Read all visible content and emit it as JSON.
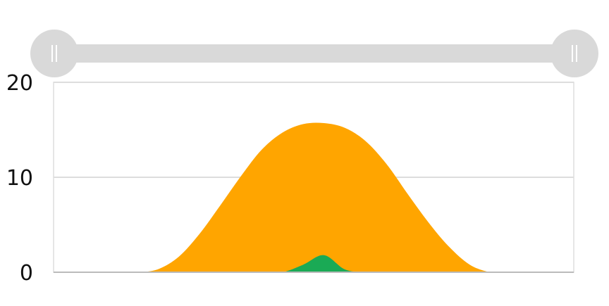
{
  "chart_data": {
    "type": "area",
    "title": "",
    "xlabel": "",
    "ylabel": "",
    "ylim": [
      0,
      20
    ],
    "y_ticks": [
      "0",
      "10",
      "20"
    ],
    "grid": true,
    "legend": "none",
    "x": [
      0,
      4,
      8,
      12,
      16,
      20,
      24,
      28,
      32,
      36,
      40,
      44,
      48,
      52,
      56,
      60,
      64,
      68,
      72,
      76,
      80,
      84,
      88,
      92,
      96,
      100
    ],
    "series": [
      {
        "color": "#ffa500",
        "values": [
          0,
          0,
          0,
          0,
          0,
          0.3,
          1.6,
          4.0,
          7.0,
          10.1,
          12.9,
          14.7,
          15.6,
          15.7,
          15.2,
          13.8,
          11.4,
          8.3,
          5.3,
          2.7,
          0.8,
          0,
          0,
          0,
          0,
          0
        ]
      },
      {
        "color": "#1aaa55",
        "values": [
          0,
          0,
          0,
          0,
          0,
          0,
          0,
          0,
          0,
          0,
          0,
          0,
          0.8,
          1.8,
          0.3,
          0,
          0,
          0,
          0,
          0,
          0,
          0,
          0,
          0,
          0,
          0
        ]
      }
    ]
  },
  "range_slider": {
    "start": 0,
    "end": 1,
    "left_handle_icon": "grip-lines-icon",
    "right_handle_icon": "grip-lines-icon"
  },
  "colors": {
    "grid": "#dddddd",
    "axis": "#bbbbbb",
    "slider_track": "#d9d9d9",
    "slider_handle": "#d9d9d9"
  }
}
